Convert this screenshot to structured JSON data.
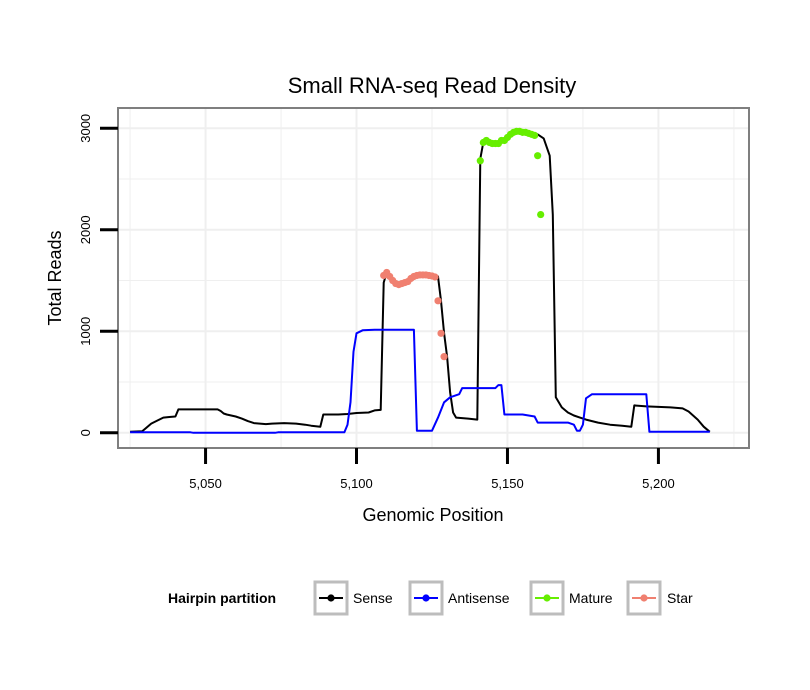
{
  "chart_data": {
    "type": "line",
    "title": "Small RNA-seq Read Density",
    "xlabel": "Genomic Position",
    "ylabel": "Total Reads",
    "xlim": [
      5021,
      5230
    ],
    "ylim": [
      -150,
      3200
    ],
    "x_ticks": [
      5050,
      5100,
      5150,
      5200
    ],
    "x_tick_labels": [
      "5,050",
      "5,100",
      "5,150",
      "5,200"
    ],
    "y_ticks": [
      0,
      1000,
      2000,
      3000
    ],
    "y_tick_labels": [
      "0",
      "1000",
      "2000",
      "3000"
    ],
    "grid": true,
    "legend": {
      "title": "Hairpin partition",
      "position": "bottom",
      "entries": [
        {
          "label": "Sense",
          "color": "#000000"
        },
        {
          "label": "Antisense",
          "color": "#0000ff"
        },
        {
          "label": "Mature",
          "color": "#66ee00"
        },
        {
          "label": "Star",
          "color": "#f08070"
        }
      ]
    },
    "series": [
      {
        "name": "Sense",
        "color": "#000000",
        "kind": "line",
        "points": [
          [
            5025,
            10
          ],
          [
            5029,
            15
          ],
          [
            5030,
            40
          ],
          [
            5032,
            90
          ],
          [
            5034,
            120
          ],
          [
            5036,
            150
          ],
          [
            5038,
            155
          ],
          [
            5040,
            160
          ],
          [
            5041,
            230
          ],
          [
            5054,
            230
          ],
          [
            5055,
            215
          ],
          [
            5056,
            190
          ],
          [
            5057,
            180
          ],
          [
            5060,
            160
          ],
          [
            5062,
            140
          ],
          [
            5064,
            115
          ],
          [
            5066,
            95
          ],
          [
            5068,
            90
          ],
          [
            5070,
            85
          ],
          [
            5072,
            90
          ],
          [
            5076,
            95
          ],
          [
            5080,
            90
          ],
          [
            5083,
            80
          ],
          [
            5085,
            70
          ],
          [
            5088,
            60
          ],
          [
            5089,
            180
          ],
          [
            5094,
            180
          ],
          [
            5097,
            185
          ],
          [
            5100,
            195
          ],
          [
            5104,
            200
          ],
          [
            5106,
            220
          ],
          [
            5108,
            225
          ],
          [
            5109,
            1480
          ],
          [
            5110,
            1580
          ],
          [
            5112,
            1520
          ],
          [
            5114,
            1470
          ],
          [
            5116,
            1480
          ],
          [
            5118,
            1500
          ],
          [
            5120,
            1530
          ],
          [
            5122,
            1550
          ],
          [
            5124,
            1555
          ],
          [
            5126,
            1550
          ],
          [
            5127,
            1540
          ],
          [
            5128,
            1300
          ],
          [
            5129,
            980
          ],
          [
            5130,
            750
          ],
          [
            5131,
            400
          ],
          [
            5132,
            200
          ],
          [
            5133,
            150
          ],
          [
            5135,
            145
          ],
          [
            5137,
            140
          ],
          [
            5140,
            130
          ],
          [
            5141,
            2700
          ],
          [
            5142,
            2860
          ],
          [
            5144,
            2880
          ],
          [
            5146,
            2850
          ],
          [
            5148,
            2880
          ],
          [
            5150,
            2900
          ],
          [
            5152,
            2950
          ],
          [
            5154,
            2970
          ],
          [
            5156,
            2960
          ],
          [
            5158,
            2950
          ],
          [
            5160,
            2940
          ],
          [
            5162,
            2900
          ],
          [
            5164,
            2730
          ],
          [
            5165,
            2150
          ],
          [
            5166,
            350
          ],
          [
            5168,
            250
          ],
          [
            5170,
            200
          ],
          [
            5172,
            170
          ],
          [
            5174,
            150
          ],
          [
            5176,
            130
          ],
          [
            5180,
            100
          ],
          [
            5184,
            80
          ],
          [
            5188,
            70
          ],
          [
            5191,
            60
          ],
          [
            5192,
            270
          ],
          [
            5196,
            260
          ],
          [
            5200,
            255
          ],
          [
            5204,
            250
          ],
          [
            5208,
            240
          ],
          [
            5210,
            210
          ],
          [
            5213,
            130
          ],
          [
            5215,
            60
          ],
          [
            5217,
            10
          ]
        ]
      },
      {
        "name": "Antisense",
        "color": "#0000ff",
        "kind": "line",
        "points": [
          [
            5025,
            5
          ],
          [
            5045,
            5
          ],
          [
            5046,
            0
          ],
          [
            5073,
            0
          ],
          [
            5074,
            5
          ],
          [
            5096,
            5
          ],
          [
            5097,
            80
          ],
          [
            5098,
            300
          ],
          [
            5099,
            800
          ],
          [
            5100,
            980
          ],
          [
            5102,
            1010
          ],
          [
            5106,
            1015
          ],
          [
            5119,
            1015
          ],
          [
            5120,
            20
          ],
          [
            5125,
            20
          ],
          [
            5127,
            150
          ],
          [
            5129,
            300
          ],
          [
            5131,
            350
          ],
          [
            5134,
            380
          ],
          [
            5135,
            440
          ],
          [
            5146,
            440
          ],
          [
            5147,
            470
          ],
          [
            5148,
            470
          ],
          [
            5149,
            180
          ],
          [
            5150,
            180
          ],
          [
            5155,
            180
          ],
          [
            5159,
            160
          ],
          [
            5160,
            100
          ],
          [
            5170,
            100
          ],
          [
            5172,
            80
          ],
          [
            5173,
            20
          ],
          [
            5174,
            20
          ],
          [
            5175,
            80
          ],
          [
            5176,
            340
          ],
          [
            5178,
            380
          ],
          [
            5196,
            380
          ],
          [
            5197,
            10
          ],
          [
            5217,
            10
          ]
        ]
      },
      {
        "name": "Star",
        "color": "#f08070",
        "kind": "points",
        "points": [
          [
            5109,
            1550
          ],
          [
            5110,
            1580
          ],
          [
            5111,
            1540
          ],
          [
            5112,
            1500
          ],
          [
            5113,
            1470
          ],
          [
            5114,
            1460
          ],
          [
            5115,
            1470
          ],
          [
            5116,
            1480
          ],
          [
            5117,
            1490
          ],
          [
            5118,
            1520
          ],
          [
            5119,
            1540
          ],
          [
            5120,
            1550
          ],
          [
            5121,
            1555
          ],
          [
            5122,
            1555
          ],
          [
            5123,
            1555
          ],
          [
            5124,
            1550
          ],
          [
            5125,
            1545
          ],
          [
            5126,
            1535
          ],
          [
            5127,
            1300
          ],
          [
            5128,
            980
          ],
          [
            5129,
            750
          ]
        ]
      },
      {
        "name": "Mature",
        "color": "#66ee00",
        "kind": "points",
        "points": [
          [
            5141,
            2680
          ],
          [
            5142,
            2860
          ],
          [
            5143,
            2880
          ],
          [
            5144,
            2860
          ],
          [
            5145,
            2850
          ],
          [
            5146,
            2850
          ],
          [
            5147,
            2850
          ],
          [
            5148,
            2880
          ],
          [
            5149,
            2880
          ],
          [
            5150,
            2910
          ],
          [
            5151,
            2940
          ],
          [
            5152,
            2960
          ],
          [
            5153,
            2970
          ],
          [
            5154,
            2970
          ],
          [
            5155,
            2960
          ],
          [
            5156,
            2960
          ],
          [
            5157,
            2950
          ],
          [
            5158,
            2940
          ],
          [
            5159,
            2930
          ],
          [
            5160,
            2730
          ],
          [
            5161,
            2150
          ]
        ]
      }
    ]
  }
}
